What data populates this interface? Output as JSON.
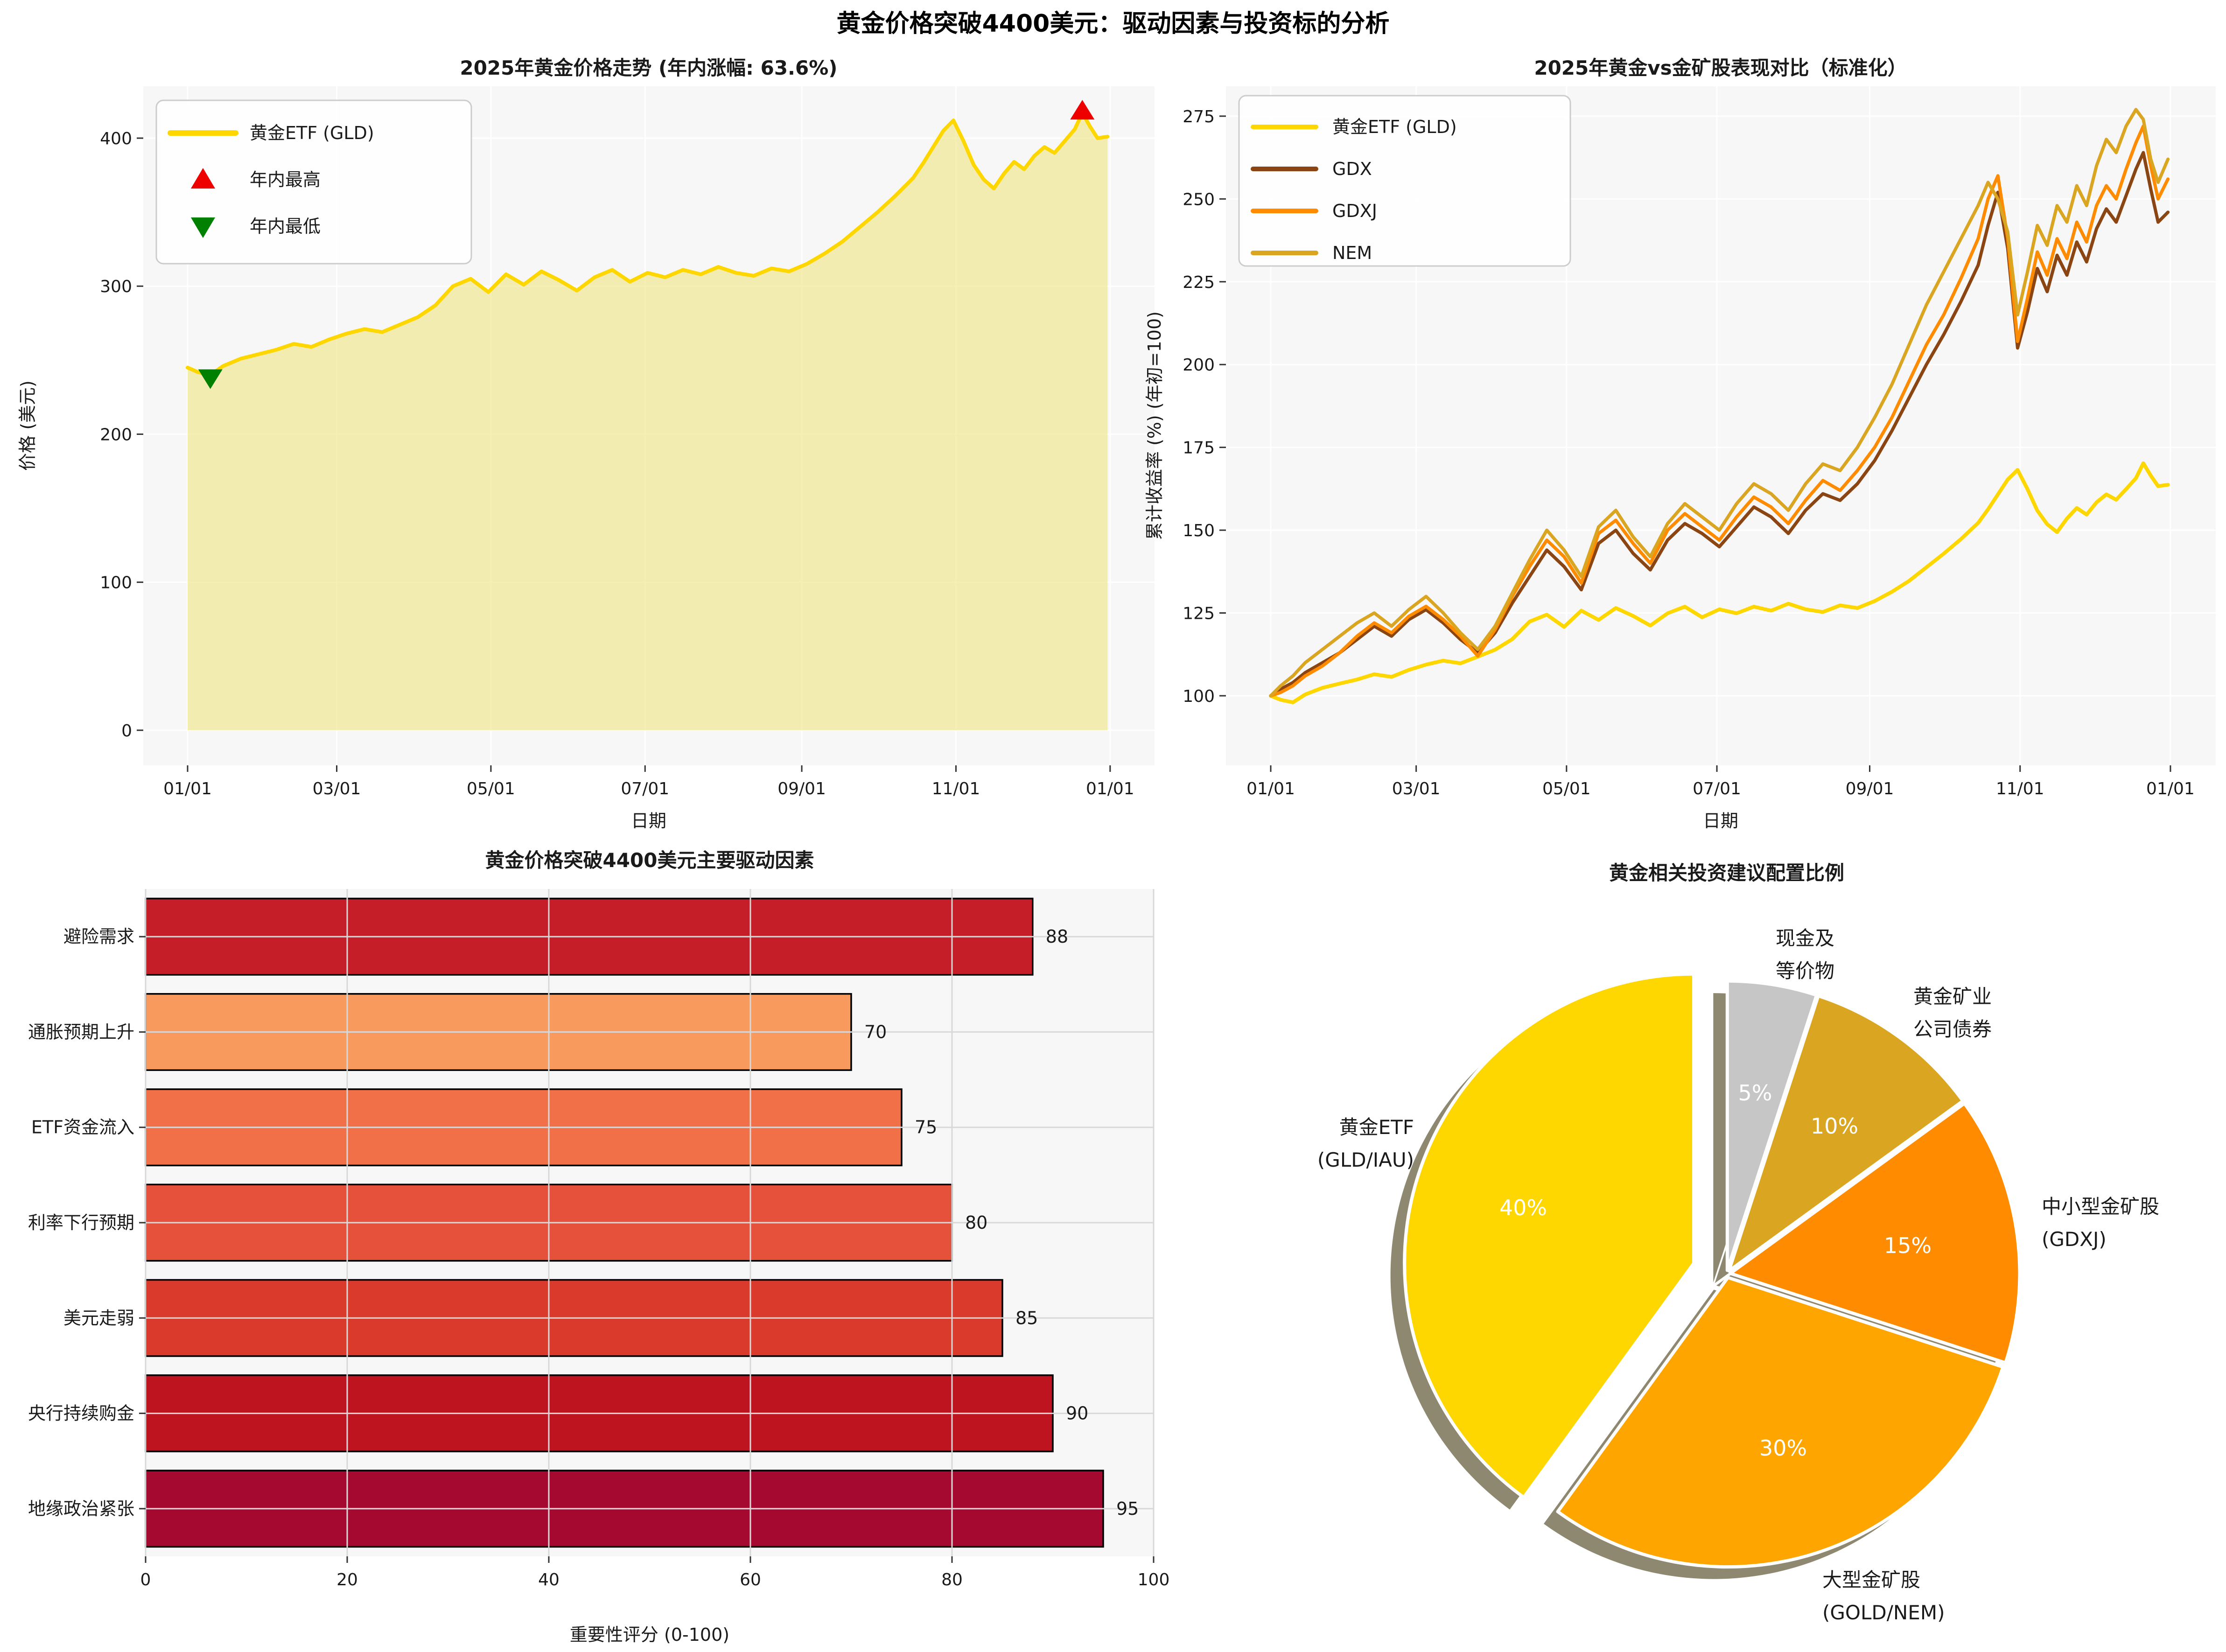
{
  "suptitle": "黄金价格突破4400美元：驱动因素与投资标的分析",
  "chart_data": [
    {
      "type": "area",
      "title": "2025年黄金价格走势 (年内涨幅: 63.6%)",
      "xlabel": "日期",
      "ylabel": "价格 (美元)",
      "x_ticks_days": [
        0,
        59,
        120,
        181,
        243,
        304,
        365
      ],
      "x_ticklabels": [
        "01/01",
        "03/01",
        "05/01",
        "07/01",
        "09/01",
        "11/01",
        "01/01"
      ],
      "yticks": [
        0,
        100,
        200,
        300,
        400
      ],
      "ylim": [
        -23.7,
        435
      ],
      "line_color": "#FFD700",
      "fill_color": "rgba(240,230,140,0.65)",
      "legend": [
        {
          "label": "黄金ETF (GLD)",
          "type": "line",
          "color": "#FFD700"
        },
        {
          "label": "年内最高",
          "type": "triangle-up",
          "color": "#EE0000"
        },
        {
          "label": "年内最低",
          "type": "triangle-down",
          "color": "#008000"
        }
      ],
      "days": [
        0,
        4,
        9,
        14,
        21,
        28,
        35,
        42,
        49,
        56,
        63,
        70,
        77,
        84,
        91,
        98,
        105,
        112,
        119,
        126,
        133,
        140,
        147,
        154,
        161,
        168,
        175,
        182,
        189,
        196,
        203,
        210,
        217,
        224,
        231,
        238,
        245,
        252,
        259,
        266,
        273,
        280,
        287,
        291,
        295,
        299,
        303,
        307,
        311,
        315,
        319,
        323,
        327,
        331,
        335,
        339,
        343,
        347,
        351,
        354,
        357,
        360,
        364
      ],
      "values": [
        245,
        242,
        240,
        246,
        251,
        254,
        257,
        261,
        259,
        264,
        268,
        271,
        269,
        274,
        279,
        287,
        300,
        305,
        296,
        308,
        301,
        310,
        304,
        297,
        306,
        311,
        303,
        309,
        306,
        311,
        308,
        313,
        309,
        307,
        312,
        310,
        315,
        322,
        330,
        340,
        350,
        361,
        373,
        383,
        394,
        405,
        412,
        398,
        382,
        372,
        366,
        376,
        384,
        379,
        388,
        394,
        390,
        398,
        406,
        417,
        408,
        400,
        401
      ],
      "max_marker": {
        "label": "年内最高",
        "day": 354,
        "value": 417,
        "color": "#EE0000"
      },
      "min_marker": {
        "label": "年内最低",
        "day": 9,
        "value": 240,
        "color": "#008000"
      }
    },
    {
      "type": "line",
      "title": "2025年黄金vs金矿股表现对比（标准化）",
      "xlabel": "日期",
      "ylabel": "累计收益率 (%) (年初=100)",
      "x_ticks_days": [
        0,
        59,
        120,
        181,
        243,
        304,
        365
      ],
      "x_ticklabels": [
        "01/01",
        "03/01",
        "05/01",
        "07/01",
        "09/01",
        "11/01",
        "01/01"
      ],
      "yticks": [
        100,
        125,
        150,
        175,
        200,
        225,
        250,
        275
      ],
      "ylim": [
        79,
        284
      ],
      "days": [
        0,
        4,
        9,
        14,
        21,
        28,
        35,
        42,
        49,
        56,
        63,
        70,
        77,
        84,
        91,
        98,
        105,
        112,
        119,
        126,
        133,
        140,
        147,
        154,
        161,
        168,
        175,
        182,
        189,
        196,
        203,
        210,
        217,
        224,
        231,
        238,
        245,
        252,
        259,
        266,
        273,
        280,
        287,
        291,
        295,
        299,
        303,
        307,
        311,
        315,
        319,
        323,
        327,
        331,
        335,
        339,
        343,
        347,
        351,
        354,
        357,
        360,
        364
      ],
      "series": [
        {
          "name": "黄金ETF (GLD)",
          "color": "#FFD700",
          "width": 8,
          "values": [
            100,
            98.8,
            98,
            100.4,
            102.4,
            103.7,
            104.9,
            106.5,
            105.7,
            107.8,
            109.4,
            110.6,
            109.8,
            111.8,
            113.9,
            117.1,
            122.4,
            124.5,
            120.8,
            125.7,
            122.9,
            126.5,
            124.1,
            121.2,
            124.9,
            126.9,
            123.7,
            126.1,
            124.9,
            126.9,
            125.7,
            127.8,
            126.1,
            125.3,
            127.3,
            126.5,
            128.6,
            131.4,
            134.7,
            138.8,
            142.9,
            147.3,
            152.2,
            156.3,
            160.8,
            165.3,
            168.2,
            162.4,
            155.9,
            151.8,
            149.4,
            153.5,
            156.7,
            154.7,
            158.4,
            160.8,
            159.2,
            162.4,
            165.7,
            170.2,
            166.5,
            163.3,
            163.7
          ]
        },
        {
          "name": "GDX",
          "color": "#8B4513",
          "width": 7,
          "values": [
            100,
            102,
            104,
            107,
            110,
            113,
            117,
            121,
            118,
            123,
            126,
            122,
            117,
            113,
            119,
            128,
            136,
            144,
            139,
            132,
            146,
            150,
            143,
            138,
            147,
            152,
            149,
            145,
            151,
            157,
            154,
            149,
            156,
            161,
            159,
            164,
            171,
            180,
            190,
            200,
            209,
            219,
            230,
            242,
            252,
            235,
            205,
            216,
            229,
            222,
            233,
            227,
            237,
            231,
            241,
            247,
            243,
            251,
            259,
            264,
            253,
            243,
            246
          ]
        },
        {
          "name": "GDXJ",
          "color": "#FF8C00",
          "width": 7,
          "values": [
            100,
            101,
            103,
            106,
            109,
            113,
            118,
            122,
            119,
            124,
            127,
            123,
            118,
            112,
            120,
            130,
            139,
            147,
            142,
            134,
            149,
            153,
            146,
            140,
            150,
            155,
            151,
            147,
            154,
            160,
            157,
            152,
            159,
            165,
            162,
            168,
            175,
            184,
            195,
            206,
            215,
            226,
            238,
            250,
            257,
            238,
            207,
            220,
            234,
            227,
            238,
            232,
            243,
            237,
            248,
            254,
            250,
            259,
            267,
            272,
            260,
            250,
            256
          ]
        },
        {
          "name": "NEM",
          "color": "#DAA520",
          "width": 7,
          "values": [
            100,
            103,
            106,
            110,
            114,
            118,
            122,
            125,
            121,
            126,
            130,
            125,
            119,
            114,
            121,
            131,
            141,
            150,
            144,
            136,
            151,
            156,
            148,
            142,
            152,
            158,
            154,
            150,
            158,
            164,
            161,
            156,
            164,
            170,
            168,
            175,
            184,
            194,
            206,
            218,
            228,
            238,
            248,
            255,
            250,
            240,
            215,
            228,
            242,
            236,
            248,
            243,
            254,
            248,
            260,
            268,
            264,
            272,
            277,
            274,
            262,
            255,
            262
          ]
        }
      ]
    },
    {
      "type": "barh",
      "title": "黄金价格突破4400美元主要驱动因素",
      "xlabel": "重要性评分 (0-100)",
      "xticks": [
        0,
        20,
        40,
        60,
        80,
        100
      ],
      "xlim": [
        0,
        100
      ],
      "categories": [
        "避险需求",
        "通胀预期上升",
        "ETF资金流入",
        "利率下行预期",
        "美元走弱",
        "央行持续购金",
        "地缘政治紧张"
      ],
      "values": [
        88,
        70,
        75,
        80,
        85,
        90,
        95
      ],
      "colors": [
        "#C51E28",
        "#F89A5D",
        "#F27048",
        "#E5513B",
        "#D93A2B",
        "#BE141F",
        "#A60930"
      ],
      "edge_color": "#000000"
    },
    {
      "type": "pie",
      "title": "黄金相关投资建议配置比例",
      "start_angle_deg": 90,
      "clockwise": true,
      "shadow_color": "#8E8870",
      "slices": [
        {
          "label": "现金及等价物",
          "label_lines": [
            "现金及",
            "等价物"
          ],
          "value": 5,
          "pct_label": "5%",
          "color": "#C6C6C6",
          "exploded": false
        },
        {
          "label": "黄金矿业公司债券",
          "label_lines": [
            "黄金矿业",
            "公司债券"
          ],
          "value": 10,
          "pct_label": "10%",
          "color": "#DAA520",
          "exploded": false
        },
        {
          "label": "中小型金矿股 (GDXJ)",
          "label_lines": [
            "中小型金矿股",
            "(GDXJ)"
          ],
          "value": 15,
          "pct_label": "15%",
          "color": "#FF8C00",
          "exploded": false
        },
        {
          "label": "大型金矿股 (GOLD/NEM)",
          "label_lines": [
            "大型金矿股",
            "(GOLD/NEM)"
          ],
          "value": 30,
          "pct_label": "30%",
          "color": "#FFA500",
          "exploded": false
        },
        {
          "label": "黄金ETF (GLD/IAU)",
          "label_lines": [
            "黄金ETF",
            "(GLD/IAU)"
          ],
          "value": 40,
          "pct_label": "40%",
          "color": "#FFD700",
          "exploded": true
        }
      ]
    }
  ]
}
